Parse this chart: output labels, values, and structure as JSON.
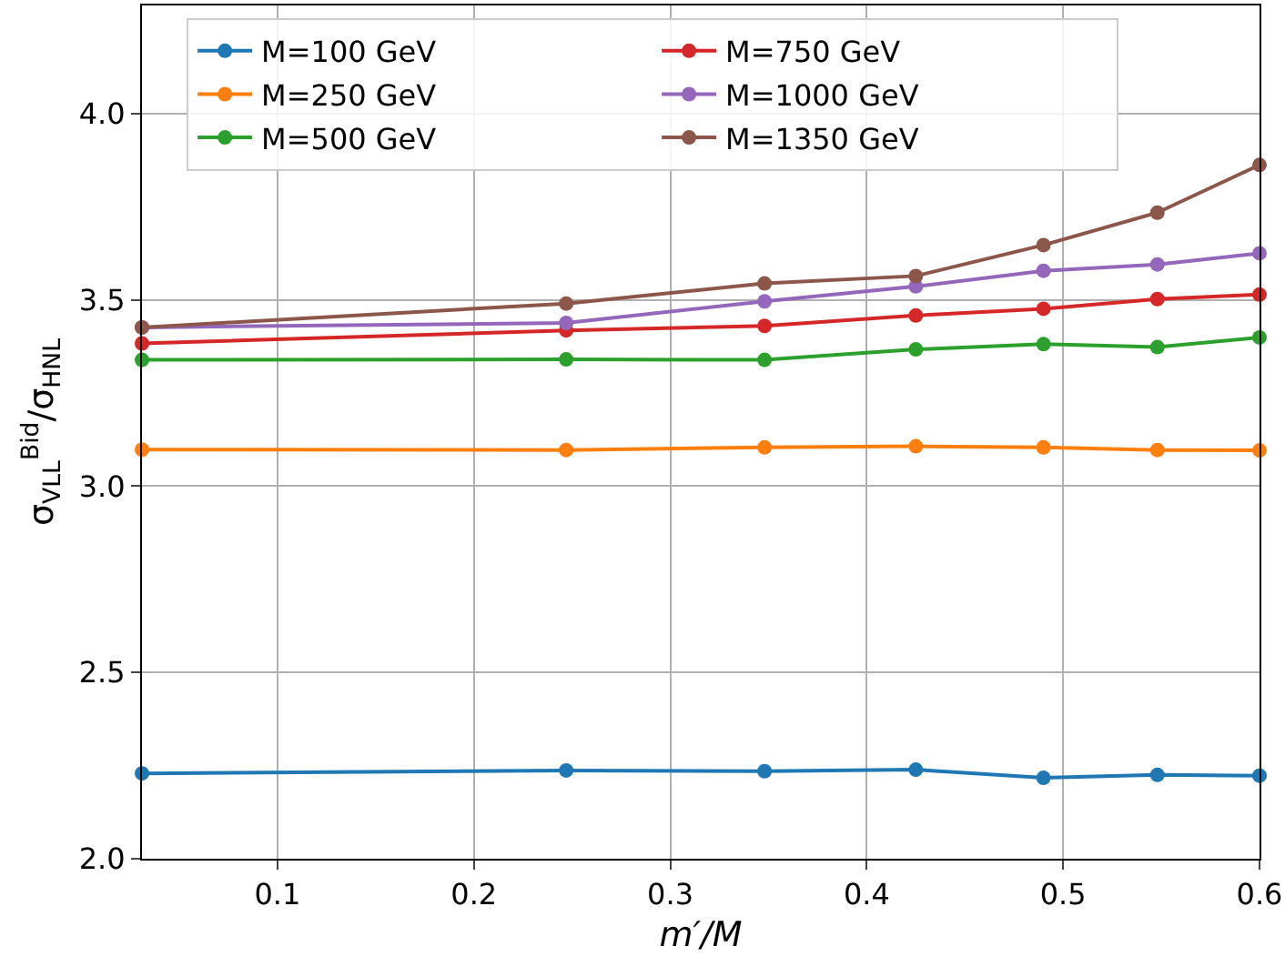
{
  "chart_data": {
    "type": "line",
    "xlabel": "m′/M",
    "ylabel": "σ$_{VLL}$$^{Bid}$/σ$_{HNL}$",
    "x": [
      0.031,
      0.247,
      0.348,
      0.425,
      0.49,
      0.548,
      0.6
    ],
    "series": [
      {
        "name": "M=100 GeV",
        "color": "#1f77b4",
        "values": [
          2.229,
          2.237,
          2.235,
          2.239,
          2.217,
          2.225,
          2.223
        ]
      },
      {
        "name": "M=250 GeV",
        "color": "#ff7f0e",
        "values": [
          3.098,
          3.097,
          3.104,
          3.107,
          3.104,
          3.097,
          3.096
        ]
      },
      {
        "name": "M=500 GeV",
        "color": "#2ca02c",
        "values": [
          3.339,
          3.34,
          3.339,
          3.367,
          3.381,
          3.373,
          3.399
        ]
      },
      {
        "name": "M=750 GeV",
        "color": "#d62728",
        "values": [
          3.383,
          3.418,
          3.43,
          3.458,
          3.476,
          3.502,
          3.514
        ]
      },
      {
        "name": "M=1000 GeV",
        "color": "#9467bd",
        "values": [
          3.426,
          3.438,
          3.496,
          3.536,
          3.578,
          3.595,
          3.625
        ]
      },
      {
        "name": "M=1350 GeV",
        "color": "#8c564b",
        "values": [
          3.426,
          3.49,
          3.544,
          3.564,
          3.647,
          3.734,
          3.862
        ]
      }
    ],
    "xlim": [
      0.031,
      0.6
    ],
    "xticks": [
      0.1,
      0.2,
      0.3,
      0.4,
      0.5,
      0.6
    ],
    "ylim": [
      2.0,
      4.29
    ],
    "yticks": [
      {
        "value": 2.0,
        "label": "2.0"
      },
      2.5,
      {
        "value": 3.0,
        "label": "3.0"
      },
      3.5,
      {
        "value": 4.0,
        "label": "4.0"
      }
    ],
    "grid": true,
    "legend": "top left",
    "marker": "circle",
    "line_style": "solid"
  }
}
